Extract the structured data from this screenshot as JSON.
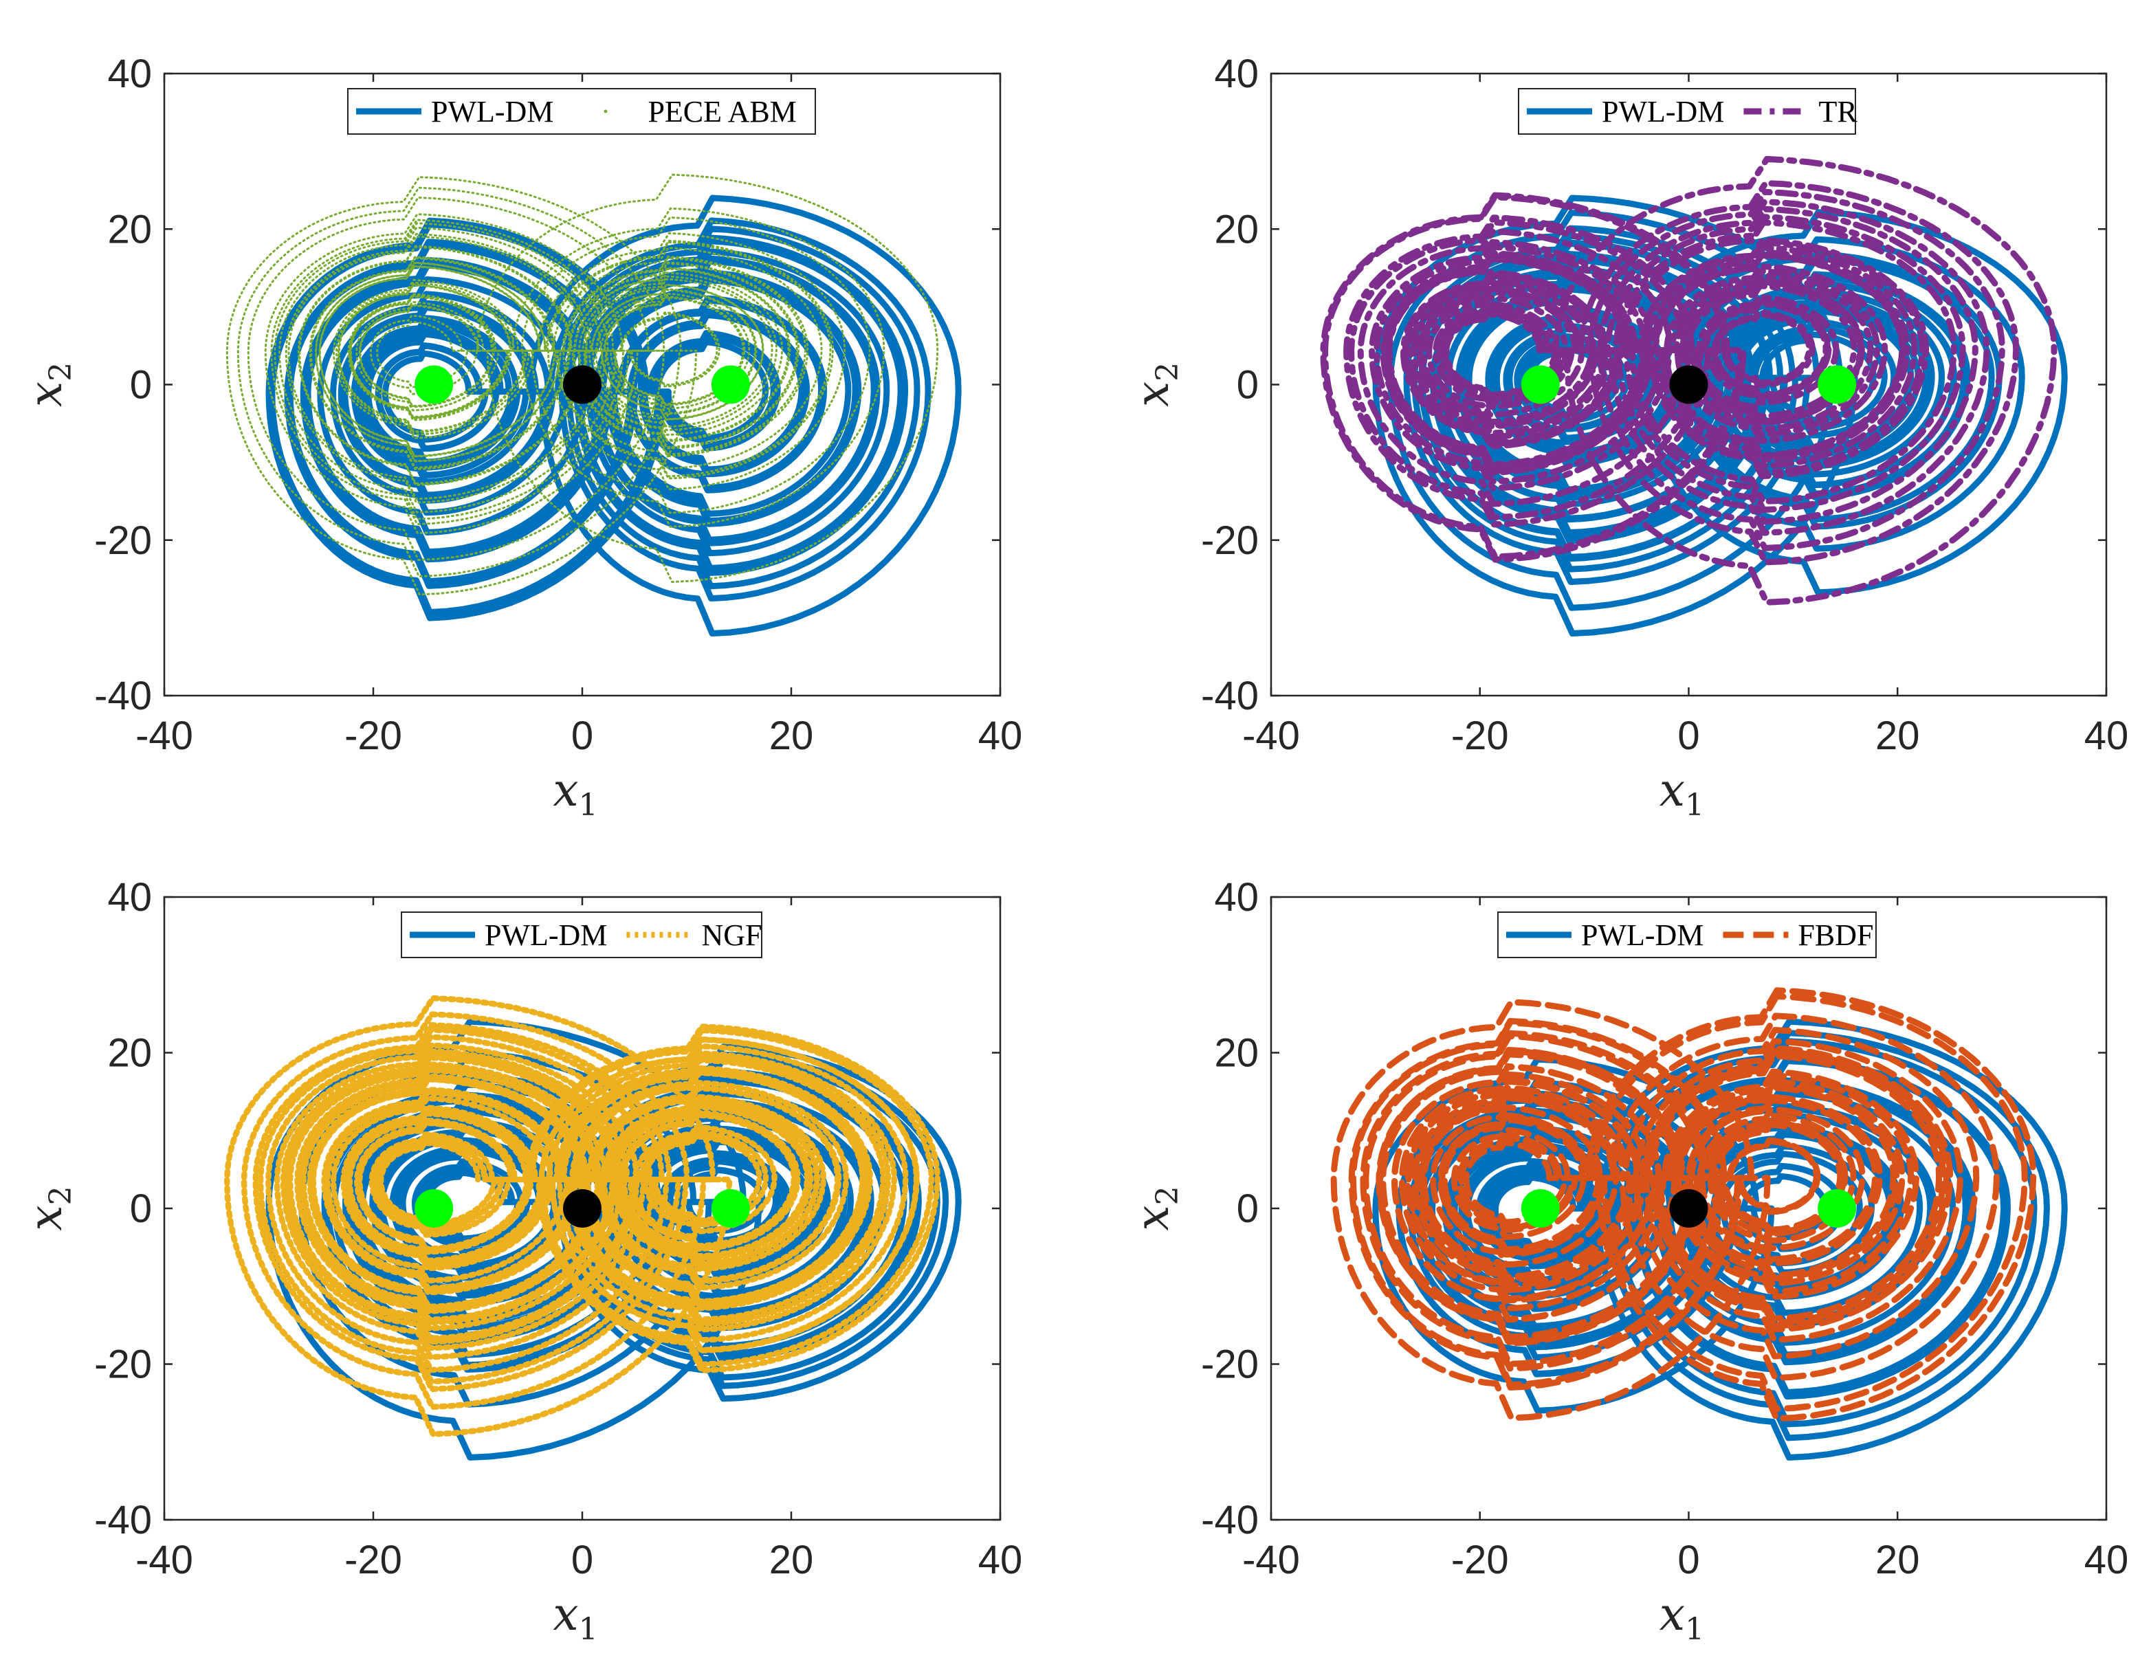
{
  "colors": {
    "pwl_dm": "#0072BD",
    "pece_abm": "#77AC30",
    "tr": "#7E2F8E",
    "ngf": "#EDB120",
    "fbdf": "#D95319",
    "equilibrium_outer": "#00FF00",
    "equilibrium_origin": "#000000"
  },
  "chart_data": [
    {
      "type": "line",
      "panel": "top-left",
      "xlabel": "x",
      "xlabel_sub": "1",
      "ylabel": "x",
      "ylabel_sub": "2",
      "xlim": [
        -40,
        40
      ],
      "ylim": [
        -40,
        40
      ],
      "xticks": [
        "-40",
        "-20",
        "0",
        "20",
        "40"
      ],
      "yticks": [
        "-40",
        "-20",
        "0",
        "20",
        "40"
      ],
      "grid": false,
      "legend_position": "top-center",
      "series": [
        {
          "name": "PWL-DM",
          "style": "solid",
          "color": "#0072BD",
          "x_range": [
            -30,
            36
          ],
          "y_range": [
            -32,
            24
          ]
        },
        {
          "name": "PECE ABM",
          "style": "dotted-thin",
          "color": "#77AC30",
          "x_range": [
            -34,
            34
          ],
          "y_range": [
            -27,
            27
          ]
        }
      ],
      "equilibria": [
        [
          -14.2,
          0
        ],
        [
          0,
          0
        ],
        [
          14.2,
          0
        ]
      ]
    },
    {
      "type": "line",
      "panel": "top-right",
      "xlabel": "x",
      "xlabel_sub": "1",
      "ylabel": "x",
      "ylabel_sub": "2",
      "xlim": [
        -40,
        40
      ],
      "ylim": [
        -40,
        40
      ],
      "xticks": [
        "-40",
        "-20",
        "0",
        "20",
        "40"
      ],
      "yticks": [
        "-40",
        "-20",
        "0",
        "20",
        "40"
      ],
      "grid": false,
      "legend_position": "top-center",
      "series": [
        {
          "name": "PWL-DM",
          "style": "solid",
          "color": "#0072BD",
          "x_range": [
            -30,
            36
          ],
          "y_range": [
            -32,
            24
          ]
        },
        {
          "name": "TR",
          "style": "dash-dot",
          "color": "#7E2F8E",
          "x_range": [
            -35,
            35
          ],
          "y_range": [
            -28,
            29
          ]
        }
      ],
      "equilibria": [
        [
          -14.2,
          0
        ],
        [
          0,
          0
        ],
        [
          14.2,
          0
        ]
      ]
    },
    {
      "type": "line",
      "panel": "bottom-left",
      "xlabel": "x",
      "xlabel_sub": "1",
      "ylabel": "x",
      "ylabel_sub": "2",
      "xlim": [
        -40,
        40
      ],
      "ylim": [
        -40,
        40
      ],
      "xticks": [
        "-40",
        "-20",
        "0",
        "20",
        "40"
      ],
      "yticks": [
        "-40",
        "-20",
        "0",
        "20",
        "40"
      ],
      "grid": false,
      "legend_position": "top-center",
      "series": [
        {
          "name": "PWL-DM",
          "style": "solid",
          "color": "#0072BD",
          "x_range": [
            -30,
            36
          ],
          "y_range": [
            -32,
            24
          ]
        },
        {
          "name": "NGF",
          "style": "dotted",
          "color": "#EDB120",
          "x_range": [
            -34,
            34
          ],
          "y_range": [
            -29,
            27
          ]
        }
      ],
      "equilibria": [
        [
          -14.2,
          0
        ],
        [
          0,
          0
        ],
        [
          14.2,
          0
        ]
      ]
    },
    {
      "type": "line",
      "panel": "bottom-right",
      "xlabel": "x",
      "xlabel_sub": "1",
      "ylabel": "x",
      "ylabel_sub": "2",
      "xlim": [
        -40,
        40
      ],
      "ylim": [
        -40,
        40
      ],
      "xticks": [
        "-40",
        "-20",
        "0",
        "20",
        "40"
      ],
      "yticks": [
        "-40",
        "-20",
        "0",
        "20",
        "40"
      ],
      "grid": false,
      "legend_position": "top-center",
      "series": [
        {
          "name": "PWL-DM",
          "style": "solid",
          "color": "#0072BD",
          "x_range": [
            -30,
            36
          ],
          "y_range": [
            -32,
            24
          ]
        },
        {
          "name": "FBDF",
          "style": "dashed",
          "color": "#D95319",
          "x_range": [
            -34,
            33
          ],
          "y_range": [
            -27,
            28
          ]
        }
      ],
      "equilibria": [
        [
          -14.2,
          0
        ],
        [
          0,
          0
        ],
        [
          14.2,
          0
        ]
      ]
    }
  ]
}
